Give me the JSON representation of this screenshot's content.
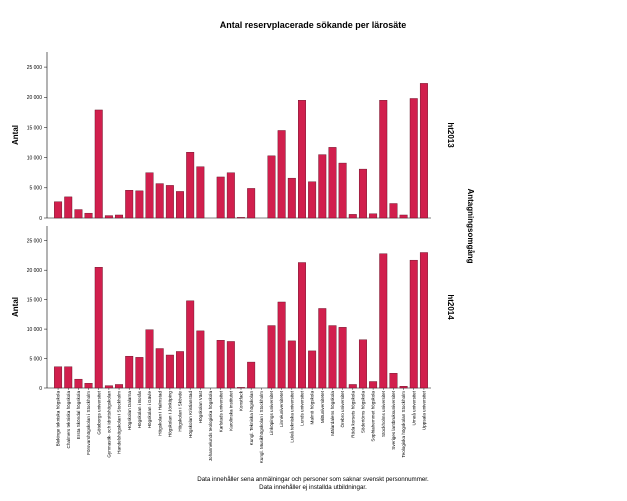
{
  "chart_data": {
    "type": "bar",
    "title": "Antal reservplacerade sökande per lärosäte",
    "ylabel": "Antal",
    "facet_label": "Antagningsomgång",
    "ylim": [
      0,
      27500
    ],
    "yticks": [
      "0",
      "5 000",
      "10 000",
      "15 000",
      "20 000",
      "25 000"
    ],
    "ytick_values": [
      0,
      5000,
      10000,
      15000,
      20000,
      25000
    ],
    "colors": {
      "bar": "#d11f4d",
      "bar_edge": "#5a0a1e",
      "axis": "#000000"
    },
    "categories": [
      "Blekinge tekniska högskola",
      "Chalmers tekniska högskola",
      "Ersta Sköndal högskola",
      "Försvarshögskolan i Stockholm",
      "Göteborgs universitet",
      "Gymnastik- och idrottshögskolan",
      "Handelshögskolan i Stockholm",
      "Högskolan Dalarna",
      "Högskolan i Borås",
      "Högskolan i Gävle",
      "Högskolan i Halmstad",
      "Högskolan i Jönköping",
      "Högskolan i Skövde",
      "Högskolan Kristianstad",
      "Högskolan Väst",
      "Johannelunds teologiska högskola",
      "Karlstads universitet",
      "Karolinska institutet",
      "Konstfack",
      "Kungl. Tekniska högskolan",
      "Kungl. Musikhögskolan i Stockholm",
      "Linköpings universitet",
      "Linnéuniversitetet",
      "Luleå tekniska universitet",
      "Lunds universitet",
      "Malmö högskola",
      "Mittuniversitetet",
      "Mälardalens högskola",
      "Örebro universitet",
      "Röda korsets högskola",
      "Södertörns högskola",
      "Sophiahemmet högskola",
      "Stockholms universitet",
      "Sveriges lantbruksuniversitet",
      "Teologiska högskolan Stockholm",
      "Umeå universitet",
      "Uppsala universitet"
    ],
    "series": [
      {
        "name": "ht2013",
        "values": [
          2700,
          3500,
          1400,
          800,
          17900,
          400,
          500,
          4600,
          4500,
          7500,
          5700,
          5400,
          4400,
          10900,
          8500,
          0,
          6800,
          7500,
          100,
          4900,
          0,
          10300,
          14500,
          6600,
          19500,
          6000,
          10500,
          11700,
          9100,
          600,
          8100,
          700,
          19500,
          2400,
          500,
          19800,
          22300
        ]
      },
      {
        "name": "ht2014",
        "values": [
          3600,
          3600,
          1500,
          800,
          20500,
          400,
          600,
          5400,
          5200,
          9900,
          6700,
          5600,
          6200,
          14800,
          9700,
          0,
          8100,
          7900,
          100,
          4400,
          0,
          10600,
          14600,
          8000,
          21300,
          6300,
          13500,
          10600,
          10300,
          600,
          8200,
          1100,
          22800,
          2500,
          300,
          21700,
          23000
        ]
      }
    ],
    "footnote": [
      "Data innehåller sena anmälningar och personer som saknar svenskt personnummer.",
      "Data innehåller ej installda utbildningar."
    ]
  }
}
